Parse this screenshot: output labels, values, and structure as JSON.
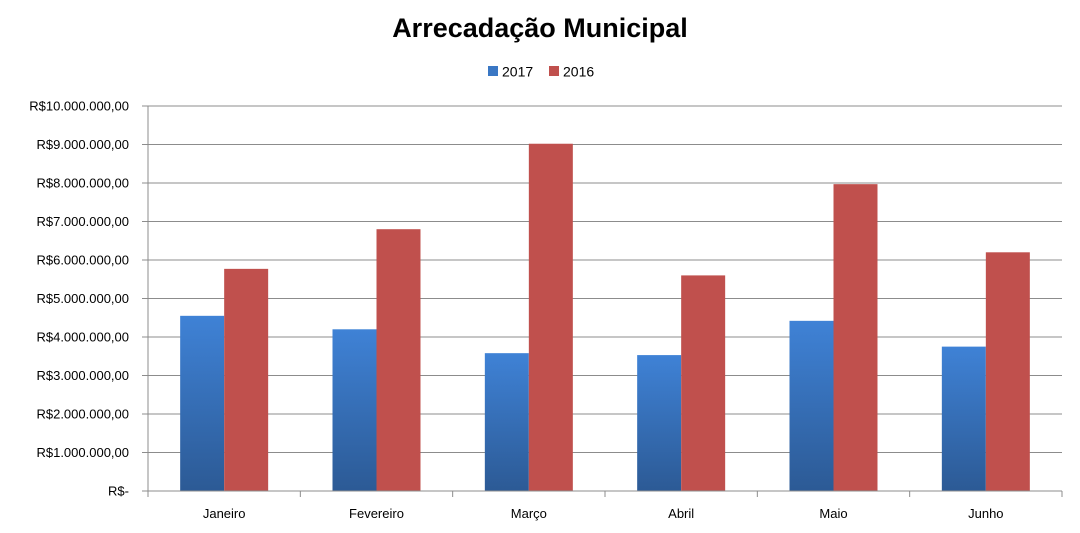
{
  "chart_data": {
    "type": "bar",
    "title": "Arrecadação Municipal",
    "xlabel": "",
    "ylabel": "",
    "categories": [
      "Janeiro",
      "Fevereiro",
      "Março",
      "Abril",
      "Maio",
      "Junho"
    ],
    "series": [
      {
        "name": "2017",
        "color": "#3a77c4",
        "values": [
          4550000,
          4200000,
          3580000,
          3530000,
          4420000,
          3750000
        ]
      },
      {
        "name": "2016",
        "color": "#c0504d",
        "values": [
          5770000,
          6800000,
          9020000,
          5600000,
          7970000,
          6200000
        ]
      }
    ],
    "ylim": [
      0,
      10000000
    ],
    "y_ticks": [
      {
        "value": 0,
        "label": "R$-"
      },
      {
        "value": 1000000,
        "label": "R$1.000.000,00"
      },
      {
        "value": 2000000,
        "label": "R$2.000.000,00"
      },
      {
        "value": 3000000,
        "label": "R$3.000.000,00"
      },
      {
        "value": 4000000,
        "label": "R$4.000.000,00"
      },
      {
        "value": 5000000,
        "label": "R$5.000.000,00"
      },
      {
        "value": 6000000,
        "label": "R$6.000.000,00"
      },
      {
        "value": 7000000,
        "label": "R$7.000.000,00"
      },
      {
        "value": 8000000,
        "label": "R$8.000.000,00"
      },
      {
        "value": 9000000,
        "label": "R$9.000.000,00"
      },
      {
        "value": 10000000,
        "label": "R$10.000.000,00"
      }
    ],
    "grid": true,
    "legend_position": "top-center"
  }
}
